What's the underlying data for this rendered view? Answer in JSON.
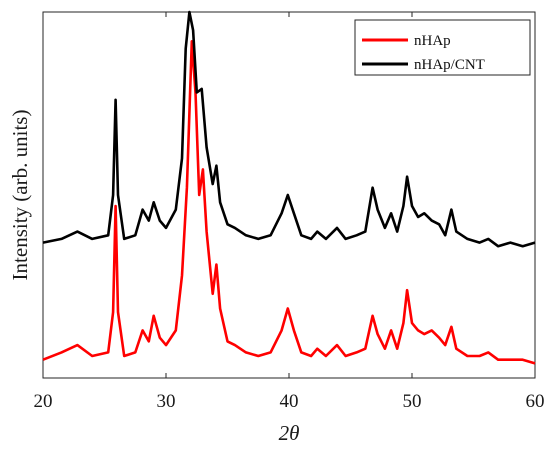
{
  "chart_data": {
    "type": "line",
    "title": "",
    "xlabel": "2θ",
    "ylabel": "Intensity (arb. units)",
    "xlim": [
      20,
      60
    ],
    "xticks": [
      "20",
      "30",
      "40",
      "50",
      "60"
    ],
    "yticks_shown": false,
    "legend_position": "top-right",
    "series": [
      {
        "name": "nHAp",
        "color": "#ff0000",
        "points": [
          [
            20.0,
            0.05
          ],
          [
            21.5,
            0.07
          ],
          [
            22.8,
            0.09
          ],
          [
            24.0,
            0.06
          ],
          [
            25.3,
            0.07
          ],
          [
            25.7,
            0.18
          ],
          [
            25.9,
            0.47
          ],
          [
            26.1,
            0.18
          ],
          [
            26.6,
            0.06
          ],
          [
            27.5,
            0.07
          ],
          [
            28.1,
            0.13
          ],
          [
            28.6,
            0.1
          ],
          [
            29.0,
            0.17
          ],
          [
            29.5,
            0.11
          ],
          [
            30.0,
            0.09
          ],
          [
            30.8,
            0.13
          ],
          [
            31.3,
            0.28
          ],
          [
            31.7,
            0.52
          ],
          [
            32.1,
            0.92
          ],
          [
            32.4,
            0.78
          ],
          [
            32.7,
            0.5
          ],
          [
            33.0,
            0.57
          ],
          [
            33.3,
            0.4
          ],
          [
            33.8,
            0.23
          ],
          [
            34.1,
            0.31
          ],
          [
            34.4,
            0.19
          ],
          [
            35.0,
            0.1
          ],
          [
            35.6,
            0.09
          ],
          [
            36.5,
            0.07
          ],
          [
            37.5,
            0.06
          ],
          [
            38.5,
            0.07
          ],
          [
            39.4,
            0.13
          ],
          [
            39.9,
            0.19
          ],
          [
            40.4,
            0.13
          ],
          [
            41.0,
            0.07
          ],
          [
            41.8,
            0.06
          ],
          [
            42.3,
            0.08
          ],
          [
            43.0,
            0.06
          ],
          [
            43.9,
            0.09
          ],
          [
            44.6,
            0.06
          ],
          [
            45.5,
            0.07
          ],
          [
            46.2,
            0.08
          ],
          [
            46.8,
            0.17
          ],
          [
            47.2,
            0.12
          ],
          [
            47.8,
            0.08
          ],
          [
            48.3,
            0.13
          ],
          [
            48.8,
            0.08
          ],
          [
            49.3,
            0.15
          ],
          [
            49.6,
            0.24
          ],
          [
            50.0,
            0.15
          ],
          [
            50.5,
            0.13
          ],
          [
            51.0,
            0.12
          ],
          [
            51.6,
            0.13
          ],
          [
            52.2,
            0.11
          ],
          [
            52.7,
            0.09
          ],
          [
            53.2,
            0.14
          ],
          [
            53.6,
            0.08
          ],
          [
            54.5,
            0.06
          ],
          [
            55.5,
            0.06
          ],
          [
            56.2,
            0.07
          ],
          [
            57.0,
            0.05
          ],
          [
            58.0,
            0.05
          ],
          [
            59.0,
            0.05
          ],
          [
            60.0,
            0.04
          ]
        ]
      },
      {
        "name": "nHAp/CNT",
        "color": "#000000",
        "points": [
          [
            20.0,
            0.37
          ],
          [
            21.5,
            0.38
          ],
          [
            22.8,
            0.4
          ],
          [
            24.0,
            0.38
          ],
          [
            25.3,
            0.39
          ],
          [
            25.7,
            0.5
          ],
          [
            25.9,
            0.76
          ],
          [
            26.1,
            0.5
          ],
          [
            26.6,
            0.38
          ],
          [
            27.5,
            0.39
          ],
          [
            28.1,
            0.46
          ],
          [
            28.6,
            0.43
          ],
          [
            29.0,
            0.48
          ],
          [
            29.5,
            0.43
          ],
          [
            30.0,
            0.41
          ],
          [
            30.8,
            0.46
          ],
          [
            31.3,
            0.6
          ],
          [
            31.6,
            0.9
          ],
          [
            31.9,
            1.0
          ],
          [
            32.2,
            0.95
          ],
          [
            32.5,
            0.78
          ],
          [
            32.9,
            0.79
          ],
          [
            33.3,
            0.63
          ],
          [
            33.8,
            0.53
          ],
          [
            34.1,
            0.58
          ],
          [
            34.4,
            0.48
          ],
          [
            35.0,
            0.42
          ],
          [
            35.6,
            0.41
          ],
          [
            36.5,
            0.39
          ],
          [
            37.5,
            0.38
          ],
          [
            38.5,
            0.39
          ],
          [
            39.4,
            0.45
          ],
          [
            39.9,
            0.5
          ],
          [
            40.4,
            0.45
          ],
          [
            41.0,
            0.39
          ],
          [
            41.8,
            0.38
          ],
          [
            42.3,
            0.4
          ],
          [
            43.0,
            0.38
          ],
          [
            43.9,
            0.41
          ],
          [
            44.6,
            0.38
          ],
          [
            45.5,
            0.39
          ],
          [
            46.2,
            0.4
          ],
          [
            46.8,
            0.52
          ],
          [
            47.2,
            0.46
          ],
          [
            47.8,
            0.41
          ],
          [
            48.3,
            0.45
          ],
          [
            48.8,
            0.4
          ],
          [
            49.3,
            0.47
          ],
          [
            49.6,
            0.55
          ],
          [
            50.0,
            0.47
          ],
          [
            50.5,
            0.44
          ],
          [
            51.0,
            0.45
          ],
          [
            51.6,
            0.43
          ],
          [
            52.2,
            0.42
          ],
          [
            52.7,
            0.39
          ],
          [
            53.2,
            0.46
          ],
          [
            53.6,
            0.4
          ],
          [
            54.5,
            0.38
          ],
          [
            55.5,
            0.37
          ],
          [
            56.2,
            0.38
          ],
          [
            57.0,
            0.36
          ],
          [
            58.0,
            0.37
          ],
          [
            59.0,
            0.36
          ],
          [
            60.0,
            0.37
          ]
        ]
      }
    ]
  }
}
